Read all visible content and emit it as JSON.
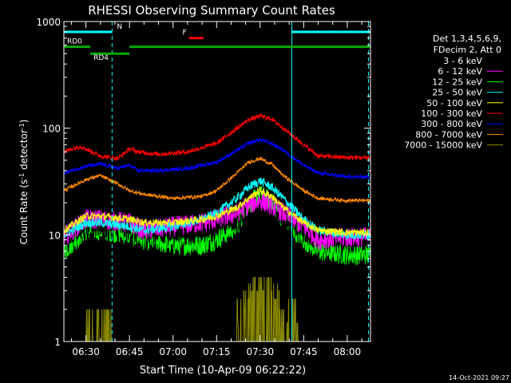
{
  "chart_data": {
    "type": "line",
    "title": "RHESSI Observing Summary Count Rates",
    "xlabel": "Start Time (10-Apr-09 06:22:22)",
    "ylabel": "Count Rate (s-1 detector-1)",
    "ylabel_parts": {
      "main": "Count Rate (s",
      "exp1": "-1",
      "mid": " detector",
      "exp2": "-1",
      "end": ")"
    },
    "y_scale": "log",
    "ylim": [
      1,
      1000
    ],
    "xlim_minutes": [
      -7.6,
      98.0
    ],
    "y_ticks": [
      {
        "value": 1,
        "label": "1"
      },
      {
        "value": 10,
        "label": "10"
      },
      {
        "value": 100,
        "label": "100"
      },
      {
        "value": 1000,
        "label": "1000"
      }
    ],
    "x_ticks": [
      {
        "value": 0,
        "label": "06:30"
      },
      {
        "value": 15,
        "label": "06:45"
      },
      {
        "value": 30,
        "label": "07:00"
      },
      {
        "value": 45,
        "label": "07:15"
      },
      {
        "value": 60,
        "label": "07:30"
      },
      {
        "value": 75,
        "label": "07:45"
      },
      {
        "value": 90,
        "label": "08:00"
      }
    ],
    "legend_header": [
      "Det 1,3,4,5,6,9,",
      "FDecim 2, Att 0"
    ],
    "legend_placement": "right",
    "footer_date": "14-Oct-2021 09:27",
    "series": [
      {
        "name": "3 - 6 keV",
        "color": "#000000",
        "x": [
          -7.6,
          0,
          5,
          15,
          20,
          30,
          40,
          45,
          52,
          56,
          60,
          64,
          68,
          75,
          80,
          90,
          98
        ],
        "values": [
          10,
          12,
          12,
          11,
          10,
          11,
          12,
          13,
          14,
          15,
          16,
          15,
          14,
          11,
          9,
          10,
          10
        ]
      },
      {
        "name": "6 - 12 keV",
        "color": "#ff00ff",
        "x": [
          -7.6,
          0,
          5,
          15,
          20,
          30,
          40,
          45,
          52,
          56,
          60,
          64,
          68,
          75,
          80,
          90,
          98
        ],
        "values": [
          9.5,
          14,
          14,
          13,
          11,
          12,
          13,
          14,
          16,
          19,
          21,
          19,
          16,
          12,
          9,
          9.5,
          9.5
        ]
      },
      {
        "name": "12 - 25 keV",
        "color": "#00ff00",
        "x": [
          -7.6,
          0,
          5,
          15,
          20,
          30,
          40,
          45,
          52,
          56,
          60,
          64,
          68,
          75,
          80,
          90,
          98
        ],
        "values": [
          7,
          11,
          11,
          10,
          9,
          8,
          8,
          9,
          12,
          19,
          24,
          20,
          14,
          9,
          7,
          6.5,
          6.5
        ]
      },
      {
        "name": "25 - 50 keV",
        "color": "#00ffff",
        "x": [
          -7.6,
          0,
          5,
          15,
          20,
          30,
          40,
          45,
          52,
          56,
          60,
          64,
          68,
          75,
          80,
          90,
          98
        ],
        "values": [
          10,
          13,
          13,
          12,
          11,
          12,
          14,
          16,
          22,
          28,
          32,
          28,
          22,
          14,
          11,
          10,
          10
        ]
      },
      {
        "name": "50 - 100 keV",
        "color": "#ffff00",
        "x": [
          -7.6,
          0,
          5,
          15,
          20,
          30,
          40,
          45,
          52,
          56,
          60,
          64,
          68,
          75,
          80,
          90,
          98
        ],
        "values": [
          11,
          15,
          15,
          14,
          13,
          13,
          14,
          15,
          18,
          22,
          26,
          23,
          18,
          13,
          11,
          10.5,
          10.5
        ]
      },
      {
        "name": "100 - 300 keV",
        "color": "#ff0000",
        "x": [
          -7.6,
          -2,
          5,
          11,
          15,
          18,
          25,
          35,
          45,
          52,
          56,
          60,
          64,
          68,
          75,
          80,
          90,
          98
        ],
        "values": [
          60,
          68,
          55,
          52,
          64,
          60,
          57,
          60,
          72,
          100,
          120,
          130,
          122,
          100,
          70,
          55,
          53,
          53
        ]
      },
      {
        "name": "300 - 800 keV",
        "color": "#0000ff",
        "x": [
          -7.6,
          0,
          5,
          11,
          15,
          18,
          25,
          35,
          45,
          52,
          56,
          60,
          64,
          68,
          75,
          80,
          90,
          98
        ],
        "values": [
          38,
          44,
          46,
          42,
          45,
          40,
          40,
          42,
          48,
          62,
          72,
          78,
          72,
          62,
          45,
          38,
          35,
          35
        ]
      },
      {
        "name": "800 - 7000 keV",
        "color": "#ff8800",
        "x": [
          -7.6,
          0,
          5,
          11,
          15,
          20,
          30,
          40,
          45,
          52,
          56,
          60,
          64,
          68,
          75,
          80,
          90,
          98
        ],
        "values": [
          26,
          33,
          36,
          30,
          26,
          24,
          22,
          23,
          26,
          38,
          48,
          52,
          46,
          36,
          26,
          22,
          21,
          21
        ]
      },
      {
        "name": "7000 - 15000 keV",
        "color": "#888800",
        "x": [
          -7.6,
          0,
          10,
          12,
          25,
          53,
          55,
          57,
          60,
          64,
          66,
          70,
          98
        ],
        "values": [
          1,
          1,
          1,
          1,
          1,
          1.5,
          2.2,
          2.8,
          3.2,
          2.8,
          2.3,
          1.5,
          1
        ]
      }
    ],
    "annotations": [
      {
        "label": "N",
        "color": "#00ffff",
        "x_start": -7.6,
        "x_end": 9.0,
        "level": 800
      },
      {
        "label": "",
        "color": "#00ffff",
        "x_start": 70.9,
        "x_end": 98.0,
        "level": 800
      },
      {
        "label": "F",
        "color": "#ff0000",
        "x_start": 35.5,
        "x_end": 40.5,
        "level": 700
      },
      {
        "label": "RD0",
        "color": "#00aa00",
        "x_start": -7.6,
        "x_end": 1.5,
        "level": 580
      },
      {
        "label": "RD4",
        "color": "#00aa00",
        "x_start": 1.5,
        "x_end": 15.0,
        "level": 500
      },
      {
        "label": "",
        "color": "#00aa00",
        "x_start": 15.0,
        "x_end": 98.0,
        "level": 580
      }
    ],
    "vertical_markers": [
      {
        "x": -7.6,
        "color": "#00ffff",
        "style": "solid"
      },
      {
        "x": 9.0,
        "color": "#00ffff",
        "style": "dashed"
      },
      {
        "x": 70.9,
        "color": "#00ffff",
        "style": "solid"
      },
      {
        "x": 97.3,
        "color": "#00ffff",
        "style": "dashed"
      }
    ],
    "grid": false
  }
}
